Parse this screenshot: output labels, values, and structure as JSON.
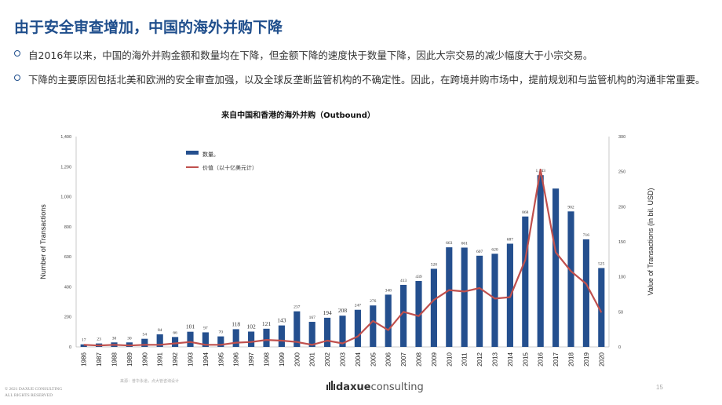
{
  "slide": {
    "title": "由于安全审查增加，中国的海外并购下降",
    "bullets": [
      "自2016年以来，中国的海外并购金额和数量均在下降，但金额下降的速度快于数量下降，因此大宗交易的减少幅度大于小宗交易。",
      "下降的主要原因包括北美和欧洲的安全审查加强，以及全球反垄断监管机构的不确定性。因此，在跨境并购市场中，提前规划和与监管机构的沟通非常重要。"
    ],
    "footer_copyright_line1": "© 2021 DAXUE CONSULTING",
    "footer_copyright_line2": "ALL RIGHTS RESERVED",
    "source_note": "来源：普华永道，点大管咨询设计",
    "logo_text_main": "daxue",
    "logo_text_accent": "consulting",
    "page_number": "15",
    "accent_color": "#1f4e8c"
  },
  "chart_data": {
    "type": "bar",
    "title": "来自中国和香港的海外并购（Outbound）",
    "ylabel": "Number of Transactions",
    "y2label": "Value of Transactions (in bil. USD)",
    "ylim": [
      0,
      1400
    ],
    "y2lim": [
      0,
      300
    ],
    "yticks": [
      "0",
      "200",
      "400",
      "600",
      "800",
      "1,000",
      "1,200",
      "1,400"
    ],
    "y2ticks": [
      "0",
      "50",
      "100",
      "150",
      "200",
      "250",
      "300"
    ],
    "categories": [
      "1986",
      "1987",
      "1988",
      "1989",
      "1990",
      "1991",
      "1992",
      "1993",
      "1994",
      "1995",
      "1996",
      "1997",
      "1998",
      "1999",
      "2000",
      "2001",
      "2002",
      "2003",
      "2004",
      "2005",
      "2006",
      "2007",
      "2008",
      "2009",
      "2010",
      "2011",
      "2012",
      "2013",
      "2014",
      "2015",
      "2016",
      "2017",
      "2018",
      "2019",
      "2020"
    ],
    "series": [
      {
        "name": "数量。",
        "type": "bar",
        "axis": "left",
        "color": "#244f8e",
        "values": [
          17,
          23,
          30,
          30,
          54,
          84,
          66,
          101,
          97,
          70,
          118,
          102,
          121,
          143,
          237,
          167,
          194,
          208,
          247,
          276,
          348,
          413,
          439,
          520,
          663,
          661,
          607,
          620,
          687,
          868,
          1143,
          1054,
          902,
          716,
          525
        ]
      },
      {
        "name": "价值（以十亿美元计）",
        "type": "line",
        "axis": "right",
        "color": "#c0504d",
        "values": [
          3,
          2,
          3,
          2,
          3,
          3,
          5,
          7,
          3,
          3,
          6,
          7,
          10,
          9,
          7,
          3,
          9,
          5,
          15,
          37,
          24,
          50,
          44,
          67,
          81,
          79,
          84,
          69,
          71,
          124,
          253,
          135,
          108,
          90,
          49
        ]
      }
    ],
    "data_labels": [
      "17",
      "23",
      "30",
      "30",
      "54",
      "84",
      "66",
      "101",
      "97",
      "70",
      "118",
      "102",
      "121",
      "143",
      "237",
      "167",
      "194",
      "208",
      "247",
      "276",
      "348",
      "413",
      "439",
      "520",
      "663",
      "661",
      "607",
      "620",
      "687",
      "868",
      "1,143",
      "",
      "902",
      "716",
      "525"
    ],
    "legend_position": "top-left",
    "grid": false
  }
}
